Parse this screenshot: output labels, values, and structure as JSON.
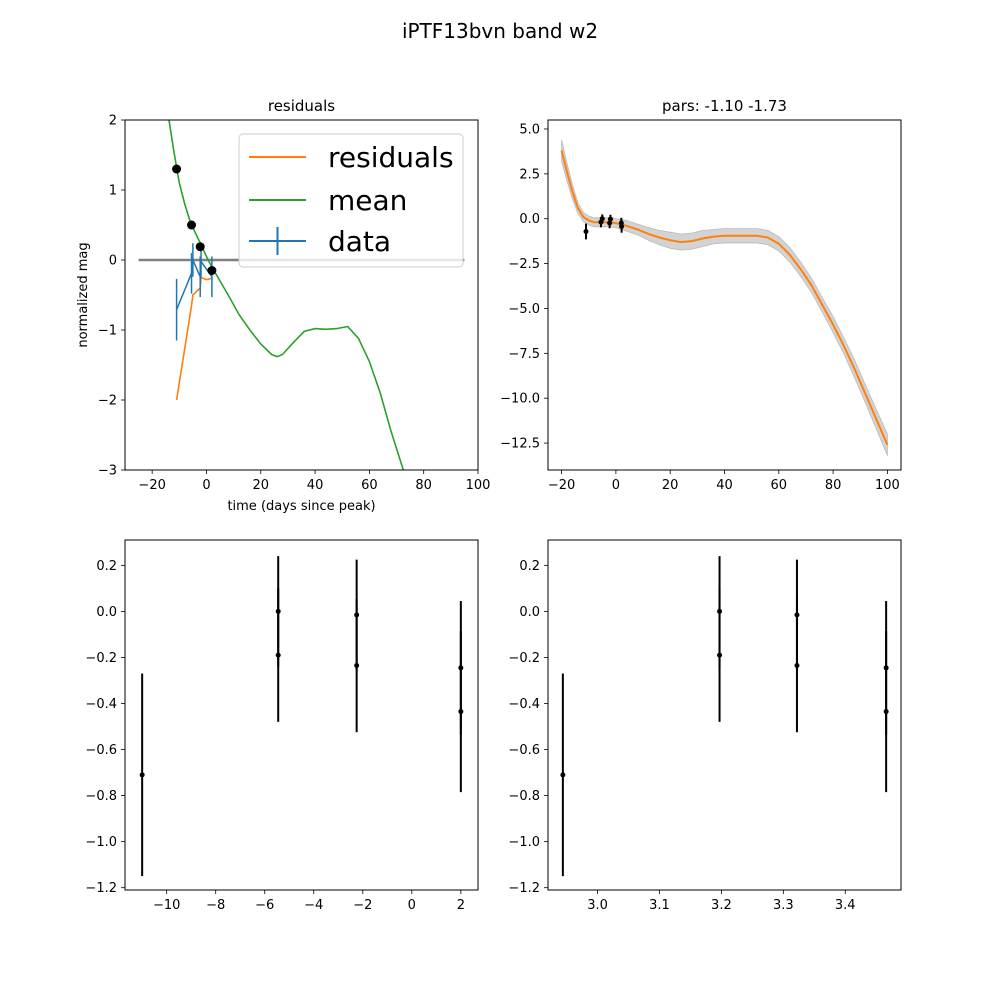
{
  "figure": {
    "title": "iPTF13bvn band w2"
  },
  "colors": {
    "residuals": "#ff7f0e",
    "mean": "#2ca02c",
    "data": "#1f77b4",
    "zero_line": "#808080",
    "band": "#d3d3d3",
    "points": "#000000"
  },
  "chart_data": [
    {
      "type": "line",
      "title": "residuals",
      "xlabel": "time (days since peak)",
      "ylabel": "normalized mag",
      "xlim": [
        -30,
        100
      ],
      "ylim": [
        -3,
        2
      ],
      "xticks": [
        "−20",
        "0",
        "20",
        "40",
        "60",
        "80",
        "100"
      ],
      "yticks": [
        "−3",
        "−2",
        "−1",
        "0",
        "1",
        "2"
      ],
      "legend": {
        "position": "top-right",
        "entries": [
          "residuals",
          "mean",
          "data"
        ]
      },
      "zero_line": {
        "x": [
          -25,
          95
        ],
        "y": 0
      },
      "series": [
        {
          "name": "residuals",
          "x": [
            -11,
            -5.5,
            -5,
            -2.3,
            -2,
            0,
            2
          ],
          "y": [
            -2.0,
            -0.65,
            -0.5,
            -0.4,
            -0.25,
            -0.28,
            -0.26
          ]
        },
        {
          "name": "mean",
          "x": [
            -14,
            -12,
            -10,
            -8,
            -6,
            -4,
            -2,
            0,
            2,
            5,
            8,
            12,
            16,
            20,
            24,
            26,
            28,
            32,
            36,
            40,
            44,
            48,
            52,
            56,
            60,
            64,
            68,
            72.5
          ],
          "y": [
            2.05,
            1.55,
            1.1,
            0.8,
            0.55,
            0.38,
            0.22,
            0.05,
            -0.1,
            -0.3,
            -0.5,
            -0.78,
            -1.0,
            -1.2,
            -1.35,
            -1.38,
            -1.35,
            -1.18,
            -1.02,
            -0.98,
            -0.99,
            -0.98,
            -0.95,
            -1.12,
            -1.45,
            -1.9,
            -2.45,
            -3.0
          ]
        },
        {
          "name": "data",
          "x": [
            -11,
            -5.5,
            -5,
            -2.3,
            -2,
            2
          ],
          "y": [
            -0.71,
            -0.19,
            0.0,
            -0.24,
            -0.02,
            -0.24
          ],
          "yerr": [
            0.44,
            0.29,
            0.24,
            0.29,
            0.24,
            0.29
          ]
        }
      ],
      "points": {
        "x": [
          -11,
          -5.5,
          -2.3,
          2
        ],
        "y": [
          1.3,
          0.5,
          0.19,
          -0.15
        ]
      }
    },
    {
      "type": "line",
      "title": "pars: -1.10 -1.73",
      "xlim": [
        -25,
        105
      ],
      "ylim": [
        -14,
        5.5
      ],
      "xticks": [
        "−20",
        "0",
        "20",
        "40",
        "60",
        "80",
        "100"
      ],
      "yticks": [
        "−12.5",
        "−10.0",
        "−7.5",
        "−5.0",
        "−2.5",
        "0.0",
        "2.5",
        "5.0"
      ],
      "series": [
        {
          "name": "mean",
          "x": [
            -20,
            -18,
            -16,
            -14,
            -12,
            -10,
            -8,
            -6,
            -4,
            -2,
            0,
            4,
            8,
            12,
            16,
            20,
            24,
            28,
            32,
            36,
            40,
            44,
            48,
            52,
            56,
            60,
            64,
            68,
            72,
            76,
            80,
            84,
            88,
            92,
            96,
            100
          ],
          "y": [
            3.8,
            2.6,
            1.5,
            0.6,
            0.1,
            -0.1,
            -0.2,
            -0.2,
            -0.2,
            -0.2,
            -0.25,
            -0.4,
            -0.6,
            -0.85,
            -1.05,
            -1.2,
            -1.3,
            -1.25,
            -1.1,
            -1.0,
            -0.95,
            -0.95,
            -0.95,
            -0.95,
            -1.05,
            -1.4,
            -2.0,
            -2.8,
            -3.7,
            -4.8,
            -5.9,
            -7.1,
            -8.4,
            -9.8,
            -11.2,
            -12.6
          ],
          "band": [
            0.6,
            0.5,
            0.4,
            0.3,
            0.25,
            0.25,
            0.25,
            0.25,
            0.25,
            0.25,
            0.25,
            0.3,
            0.3,
            0.35,
            0.4,
            0.45,
            0.45,
            0.45,
            0.45,
            0.4,
            0.4,
            0.4,
            0.4,
            0.4,
            0.4,
            0.4,
            0.4,
            0.4,
            0.4,
            0.4,
            0.45,
            0.45,
            0.5,
            0.5,
            0.55,
            0.6
          ]
        }
      ],
      "data": {
        "x": [
          -11,
          -5.5,
          -5,
          -2.3,
          -2,
          2,
          2.1
        ],
        "y": [
          -0.71,
          -0.19,
          0.0,
          -0.24,
          -0.02,
          -0.24,
          -0.43
        ],
        "yerr": [
          0.44,
          0.29,
          0.24,
          0.29,
          0.24,
          0.29,
          0.35
        ]
      }
    },
    {
      "type": "scatter",
      "xlim": [
        -11.7,
        2.7
      ],
      "ylim": [
        -1.21,
        0.31
      ],
      "xticks": [
        "−10",
        "−8",
        "−6",
        "−4",
        "−2",
        "0",
        "2"
      ],
      "yticks": [
        "−1.2",
        "−1.0",
        "−0.8",
        "−0.6",
        "−0.4",
        "−0.2",
        "0.0",
        "0.2"
      ],
      "points": {
        "x": [
          -11.0,
          -5.45,
          -5.45,
          -2.25,
          -2.25,
          2.0,
          2.0
        ],
        "y": [
          -0.71,
          -0.19,
          0.0,
          -0.235,
          -0.015,
          -0.245,
          -0.435
        ],
        "yerr": [
          0.44,
          0.29,
          0.24,
          0.29,
          0.24,
          0.29,
          0.35
        ]
      }
    },
    {
      "type": "scatter",
      "xlim": [
        2.92,
        3.49
      ],
      "ylim": [
        -1.21,
        0.31
      ],
      "xticks": [
        "3.0",
        "3.1",
        "3.2",
        "3.3",
        "3.4"
      ],
      "yticks": [
        "−1.2",
        "−1.0",
        "−0.8",
        "−0.6",
        "−0.4",
        "−0.2",
        "0.0",
        "0.2"
      ],
      "points": {
        "x": [
          2.944,
          3.197,
          3.197,
          3.322,
          3.322,
          3.466,
          3.466
        ],
        "y": [
          -0.71,
          -0.19,
          0.0,
          -0.235,
          -0.015,
          -0.245,
          -0.435
        ],
        "yerr": [
          0.44,
          0.29,
          0.24,
          0.29,
          0.24,
          0.29,
          0.35
        ]
      }
    }
  ]
}
